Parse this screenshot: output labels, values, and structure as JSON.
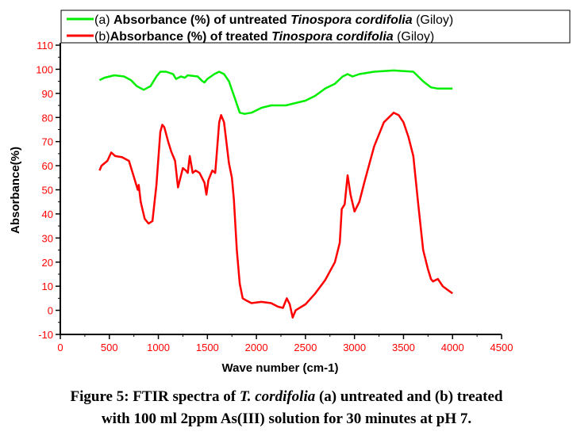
{
  "chart_data": {
    "type": "line",
    "xlabel": "Wave number (cm-1)",
    "ylabel": "Absorbance(%)",
    "xlim": [
      0,
      4500
    ],
    "ylim": [
      -10,
      110
    ],
    "xticks": [
      0,
      500,
      1000,
      1500,
      2000,
      2500,
      3000,
      3500,
      4000,
      4500
    ],
    "yticks": [
      -10,
      0,
      10,
      20,
      30,
      40,
      50,
      60,
      70,
      80,
      90,
      100,
      110
    ],
    "legend_position": "top",
    "series": [
      {
        "name_prefix": "(a) ",
        "name_main": "Absorbance (%) of untreated ",
        "name_italic": "Tinospora cordifolia",
        "name_suffix": " (Giloy)",
        "color": "#00ee00",
        "points": [
          [
            400,
            95.5
          ],
          [
            450,
            96.5
          ],
          [
            550,
            97.5
          ],
          [
            650,
            97
          ],
          [
            720,
            95.5
          ],
          [
            780,
            93
          ],
          [
            850,
            91.5
          ],
          [
            920,
            93
          ],
          [
            980,
            97
          ],
          [
            1020,
            99
          ],
          [
            1080,
            99
          ],
          [
            1150,
            98
          ],
          [
            1180,
            96
          ],
          [
            1230,
            97
          ],
          [
            1270,
            96.5
          ],
          [
            1300,
            97.5
          ],
          [
            1400,
            97
          ],
          [
            1450,
            95
          ],
          [
            1470,
            94.5
          ],
          [
            1500,
            96
          ],
          [
            1570,
            98
          ],
          [
            1620,
            99
          ],
          [
            1670,
            98
          ],
          [
            1720,
            95
          ],
          [
            1780,
            88
          ],
          [
            1830,
            82
          ],
          [
            1880,
            81.5
          ],
          [
            1950,
            82
          ],
          [
            2050,
            84
          ],
          [
            2150,
            85
          ],
          [
            2300,
            85
          ],
          [
            2400,
            86
          ],
          [
            2500,
            87
          ],
          [
            2600,
            89
          ],
          [
            2700,
            92
          ],
          [
            2800,
            94
          ],
          [
            2880,
            97
          ],
          [
            2930,
            98
          ],
          [
            2980,
            97
          ],
          [
            3050,
            98
          ],
          [
            3200,
            99
          ],
          [
            3400,
            99.5
          ],
          [
            3600,
            99
          ],
          [
            3700,
            95
          ],
          [
            3780,
            92.5
          ],
          [
            3850,
            92
          ],
          [
            4000,
            92
          ]
        ]
      },
      {
        "name_prefix": "(b)",
        "name_main": "Absorbance (%) of treated ",
        "name_italic": "Tinospora cordifolia",
        "name_suffix": " (Giloy)",
        "color": "#ff0000",
        "points": [
          [
            400,
            58
          ],
          [
            420,
            60
          ],
          [
            480,
            62
          ],
          [
            520,
            65.5
          ],
          [
            560,
            64
          ],
          [
            630,
            63.5
          ],
          [
            700,
            62
          ],
          [
            760,
            54
          ],
          [
            790,
            50
          ],
          [
            800,
            52
          ],
          [
            820,
            45
          ],
          [
            860,
            38
          ],
          [
            900,
            36
          ],
          [
            940,
            37
          ],
          [
            980,
            52
          ],
          [
            1020,
            74
          ],
          [
            1040,
            77
          ],
          [
            1060,
            76
          ],
          [
            1100,
            70
          ],
          [
            1130,
            66
          ],
          [
            1170,
            62
          ],
          [
            1200,
            51
          ],
          [
            1250,
            59
          ],
          [
            1280,
            58
          ],
          [
            1300,
            57
          ],
          [
            1320,
            64
          ],
          [
            1350,
            57
          ],
          [
            1380,
            58
          ],
          [
            1420,
            57
          ],
          [
            1470,
            53
          ],
          [
            1490,
            48
          ],
          [
            1510,
            54
          ],
          [
            1550,
            58
          ],
          [
            1580,
            57
          ],
          [
            1620,
            78
          ],
          [
            1640,
            81
          ],
          [
            1670,
            78
          ],
          [
            1720,
            61
          ],
          [
            1750,
            55
          ],
          [
            1770,
            46
          ],
          [
            1800,
            25
          ],
          [
            1830,
            11
          ],
          [
            1860,
            5
          ],
          [
            1900,
            4
          ],
          [
            1950,
            3
          ],
          [
            2050,
            3.5
          ],
          [
            2150,
            3
          ],
          [
            2220,
            1.5
          ],
          [
            2270,
            1
          ],
          [
            2310,
            5
          ],
          [
            2340,
            2.5
          ],
          [
            2370,
            -3
          ],
          [
            2400,
            0
          ],
          [
            2500,
            2.5
          ],
          [
            2600,
            7
          ],
          [
            2700,
            12.5
          ],
          [
            2800,
            20
          ],
          [
            2850,
            28
          ],
          [
            2870,
            42
          ],
          [
            2900,
            44
          ],
          [
            2930,
            56
          ],
          [
            2960,
            48
          ],
          [
            3000,
            41
          ],
          [
            3050,
            45
          ],
          [
            3100,
            53
          ],
          [
            3200,
            68
          ],
          [
            3300,
            78
          ],
          [
            3400,
            82
          ],
          [
            3450,
            81
          ],
          [
            3500,
            78
          ],
          [
            3550,
            72
          ],
          [
            3600,
            64
          ],
          [
            3650,
            44
          ],
          [
            3700,
            25
          ],
          [
            3750,
            17
          ],
          [
            3780,
            13
          ],
          [
            3800,
            12
          ],
          [
            3850,
            13
          ],
          [
            3900,
            10
          ],
          [
            3950,
            8.5
          ],
          [
            4000,
            7
          ]
        ]
      }
    ]
  },
  "caption": {
    "line1_a": "Figure 5: FTIR spectra of ",
    "line1_italic": "T. cordifolia",
    "line1_b": " (a) untreated and (b) treated",
    "line2": "with 100 ml 2ppm As(III) solution for 30 minutes at pH 7."
  }
}
